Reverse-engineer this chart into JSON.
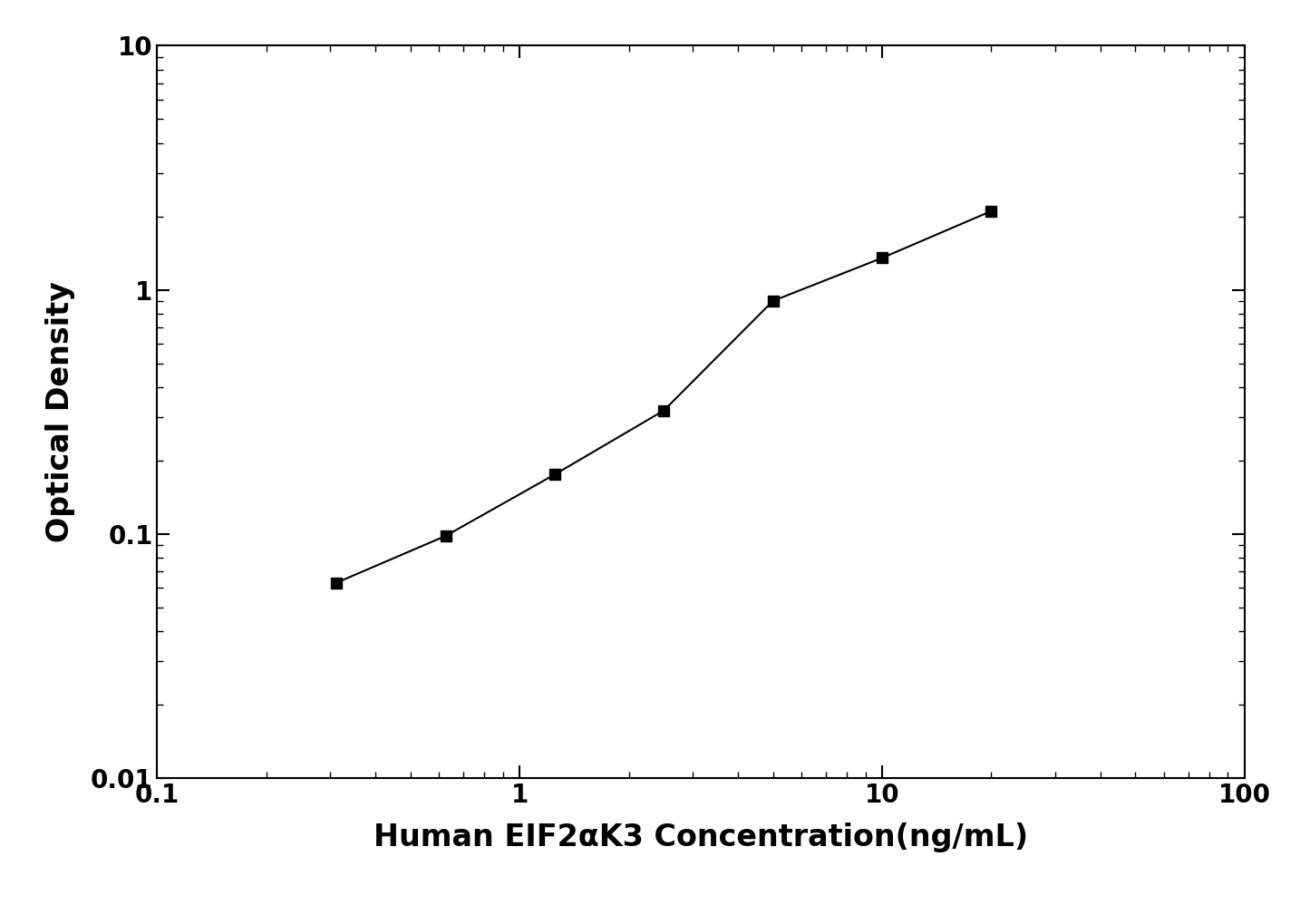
{
  "x": [
    0.3125,
    0.625,
    1.25,
    2.5,
    5.0,
    10.0,
    20.0
  ],
  "y": [
    0.063,
    0.098,
    0.175,
    0.32,
    0.9,
    1.35,
    2.1
  ],
  "xlim": [
    0.1,
    100
  ],
  "ylim": [
    0.01,
    10
  ],
  "xlabel": "Human EIF2αK3 Concentration(ng/mL)",
  "ylabel": "Optical Density",
  "line_color": "#000000",
  "marker": "s",
  "marker_size": 9,
  "marker_color": "#000000",
  "linewidth": 1.5,
  "xlabel_fontsize": 24,
  "ylabel_fontsize": 24,
  "tick_labelsize": 20,
  "background_color": "#ffffff"
}
